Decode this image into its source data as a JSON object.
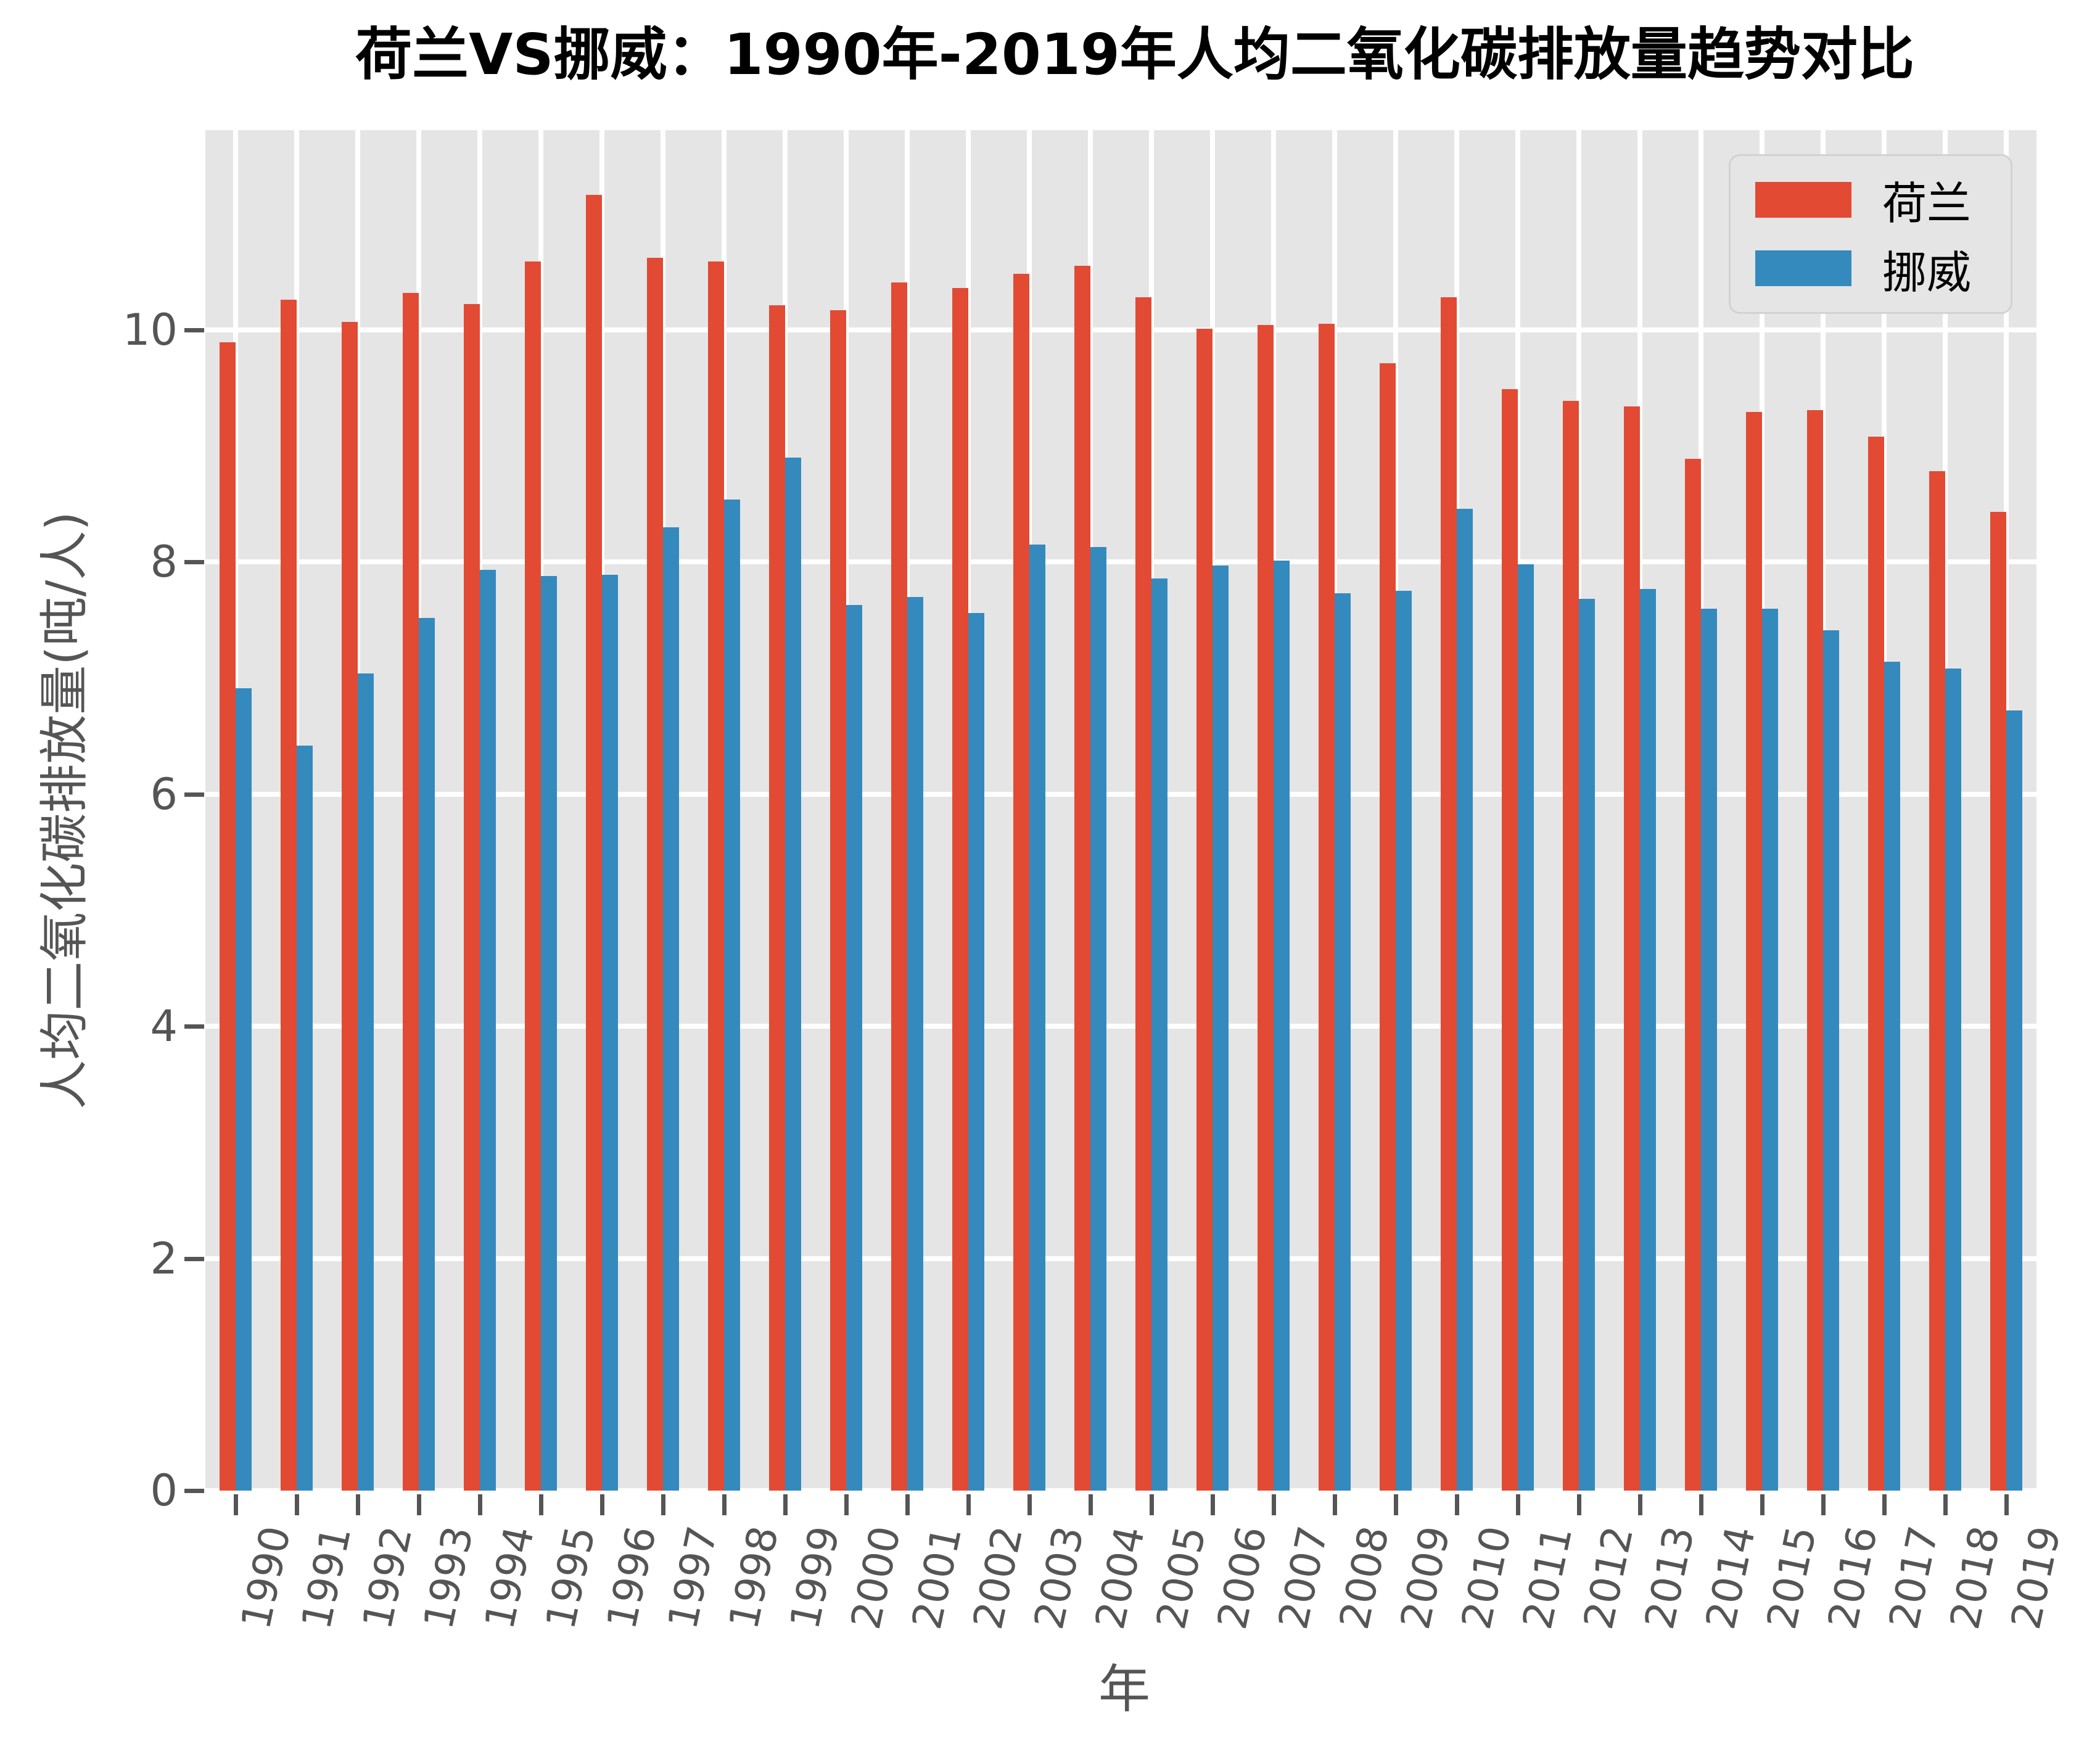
{
  "title": "荷兰VS挪威：1990年-2019年人均二氧化碳排放量趋势对比",
  "x_axis_label": "年",
  "y_axis_label": "人均二氧化碳排放量(吨/人)",
  "legend": [
    {
      "label": "荷兰",
      "color": "#E24A33"
    },
    {
      "label": "挪威",
      "color": "#348ABD"
    }
  ],
  "colors": {
    "plot_background": "#E5E5E5",
    "gridline": "#ffffff",
    "tick_text": "#555555",
    "title_text": "#000000",
    "netherlands_red": "#E24A33",
    "norway_blue": "#348ABD"
  },
  "chart_data": {
    "type": "bar",
    "title": "荷兰VS挪威：1990年-2019年人均二氧化碳排放量趋势对比",
    "xlabel": "年",
    "ylabel": "人均二氧化碳排放量(吨/人)",
    "categories": [
      "1990",
      "1991",
      "1992",
      "1993",
      "1994",
      "1995",
      "1996",
      "1997",
      "1998",
      "1999",
      "2000",
      "2001",
      "2002",
      "2003",
      "2004",
      "2005",
      "2006",
      "2007",
      "2008",
      "2009",
      "2010",
      "2011",
      "2012",
      "2013",
      "2014",
      "2015",
      "2016",
      "2017",
      "2018",
      "2019"
    ],
    "series": [
      {
        "name": "荷兰",
        "key": "netherlands",
        "color": "#E24A33",
        "values": [
          9.89,
          10.26,
          10.07,
          10.32,
          10.22,
          10.59,
          11.16,
          10.62,
          10.59,
          10.21,
          10.17,
          10.41,
          10.36,
          10.48,
          10.55,
          10.28,
          10.01,
          10.04,
          10.05,
          9.71,
          10.28,
          9.49,
          9.39,
          9.34,
          8.89,
          9.29,
          9.31,
          9.08,
          8.78,
          8.43
        ]
      },
      {
        "name": "挪威",
        "key": "norway",
        "color": "#348ABD",
        "values": [
          6.91,
          6.42,
          7.04,
          7.52,
          7.93,
          7.88,
          7.89,
          8.3,
          8.54,
          8.9,
          7.63,
          7.7,
          7.56,
          8.15,
          8.13,
          7.86,
          7.97,
          8.01,
          7.73,
          7.75,
          8.46,
          7.98,
          7.68,
          7.77,
          7.6,
          7.6,
          7.41,
          7.14,
          7.08,
          6.72
        ]
      }
    ],
    "ylim": [
      0,
      11.72
    ],
    "yticks": [
      0,
      2,
      4,
      6,
      8,
      10
    ],
    "grid": true,
    "legend_position": "upper right",
    "plot_background": "#E5E5E5"
  }
}
